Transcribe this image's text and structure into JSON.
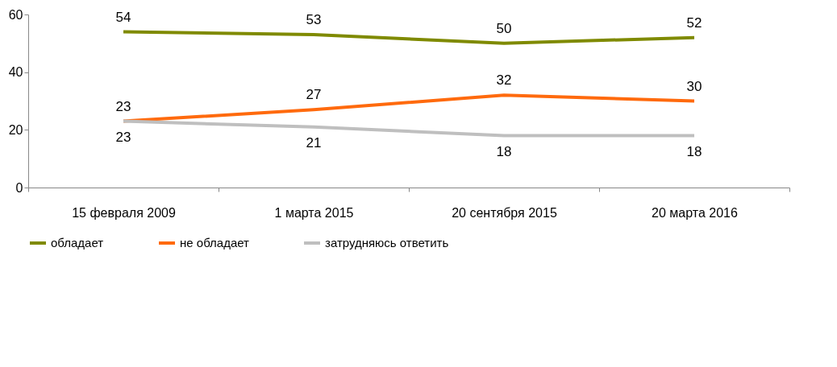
{
  "chart_data": {
    "type": "line",
    "categories": [
      "15 февраля 2009",
      "1 марта 2015",
      "20 сентября 2015",
      "20 марта 2016"
    ],
    "series": [
      {
        "name": "обладает",
        "color": "#7f8a00",
        "values": [
          54,
          53,
          50,
          52
        ]
      },
      {
        "name": "не обладает",
        "color": "#ff6a0d",
        "values": [
          23,
          27,
          32,
          30
        ]
      },
      {
        "name": "затрудняюсь ответить",
        "color": "#bfbfbf",
        "values": [
          23,
          21,
          18,
          18
        ]
      }
    ],
    "ylim": [
      0,
      60
    ],
    "yticks": [
      0,
      20,
      40,
      60
    ],
    "grid": false,
    "legend": "bottom",
    "data_labels": true,
    "marker": "none",
    "line_style": "solid"
  }
}
